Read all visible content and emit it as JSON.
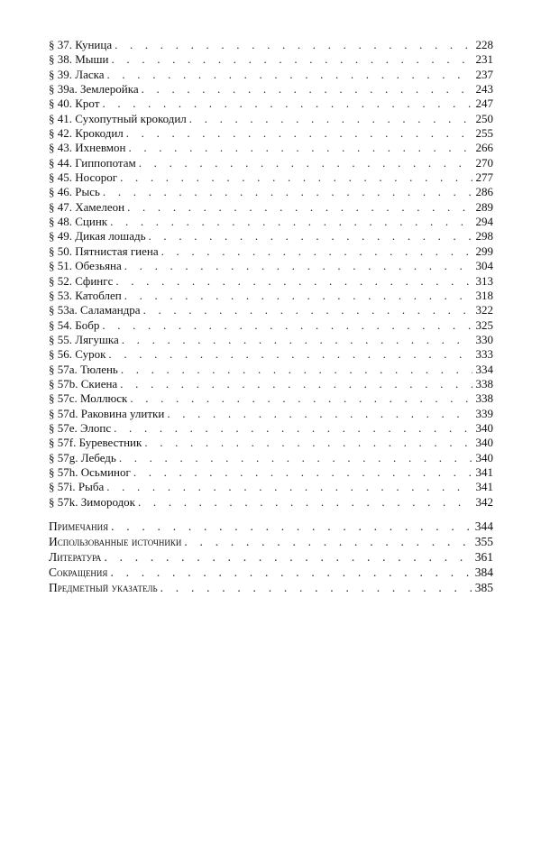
{
  "contents": [
    {
      "title": "§ 37. Куница",
      "page": "228"
    },
    {
      "title": "§ 38. Мыши",
      "page": "231"
    },
    {
      "title": "§ 39. Ласка",
      "page": "237"
    },
    {
      "title": "§ 39а. Землеройка",
      "page": "243"
    },
    {
      "title": "§ 40. Крот",
      "page": "247"
    },
    {
      "title": "§ 41. Сухопутный крокодил",
      "page": "250"
    },
    {
      "title": "§ 42. Крокодил",
      "page": "255"
    },
    {
      "title": "§ 43. Ихневмон",
      "page": "266"
    },
    {
      "title": "§ 44. Гиппопотам",
      "page": "270"
    },
    {
      "title": "§ 45. Носорог",
      "page": "277"
    },
    {
      "title": "§ 46. Рысь",
      "page": "286"
    },
    {
      "title": "§ 47. Хамелеон",
      "page": "289"
    },
    {
      "title": "§ 48. Сцинк",
      "page": "294"
    },
    {
      "title": "§ 49. Дикая лошадь",
      "page": "298"
    },
    {
      "title": "§ 50. Пятнистая гиена",
      "page": "299"
    },
    {
      "title": "§ 51. Обезьяна",
      "page": "304"
    },
    {
      "title": "§ 52. Сфингс",
      "page": "313"
    },
    {
      "title": "§ 53. Катоблеп",
      "page": "318"
    },
    {
      "title": "§ 53а. Саламандра",
      "page": "322"
    },
    {
      "title": "§ 54. Бобр",
      "page": "325"
    },
    {
      "title": "§ 55. Лягушка",
      "page": "330"
    },
    {
      "title": "§ 56. Сурок",
      "page": "333"
    },
    {
      "title": "§ 57а. Тюлень",
      "page": "334"
    },
    {
      "title": "§ 57b. Скиена",
      "page": "338"
    },
    {
      "title": "§ 57c. Моллюск",
      "page": "338"
    },
    {
      "title": "§ 57d. Раковина улитки",
      "page": "339"
    },
    {
      "title": "§ 57e. Элопс",
      "page": "340"
    },
    {
      "title": "§ 57f. Буревестник",
      "page": "340"
    },
    {
      "title": "§ 57g. Лебедь",
      "page": "340"
    },
    {
      "title": "§ 57h. Осьминог",
      "page": "341"
    },
    {
      "title": "§ 57i. Рыба",
      "page": "341"
    },
    {
      "title": "§ 57k. Зимородок",
      "page": "342"
    }
  ],
  "back_matter": [
    {
      "title": "Примечания",
      "page": "344"
    },
    {
      "title": "Использованные источники",
      "page": "355"
    },
    {
      "title": "Литература",
      "page": "361"
    },
    {
      "title": "Сокращения",
      "page": "384"
    },
    {
      "title": "Предметный указатель",
      "page": "385"
    }
  ]
}
